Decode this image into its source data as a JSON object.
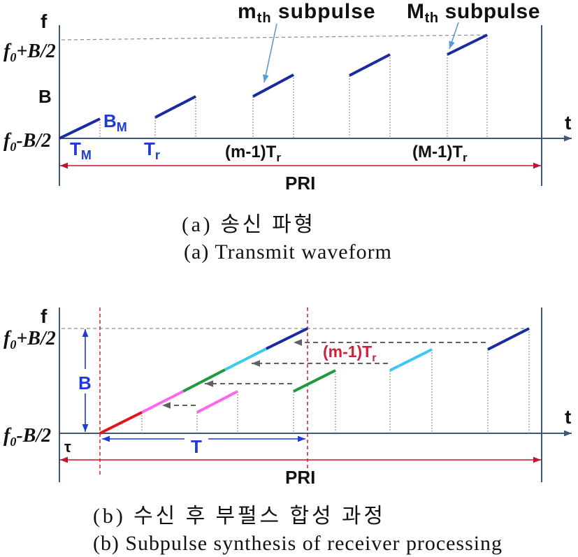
{
  "figure_a": {
    "axis_f": "f",
    "axis_t": "t",
    "f_high": {
      "base": "f",
      "sub": "0",
      "rest": "+B/2"
    },
    "bandwidth": "B",
    "f_low": {
      "base": "f",
      "sub": "0",
      "rest": "-B/2"
    },
    "m_th_callout": {
      "base": "m",
      "sub": "th",
      "rest": " subpulse"
    },
    "M_th_callout": {
      "base": "M",
      "sub": "th",
      "rest": " subpulse"
    },
    "subpulse_bandwidth": {
      "base": "B",
      "sub": "M"
    },
    "subpulse_width": {
      "base": "T",
      "sub": "M"
    },
    "repetition": {
      "base": "T",
      "sub": "r"
    },
    "m_offset": {
      "base": "(m-1)T",
      "sub": "r"
    },
    "M_offset": {
      "base": "(M-1)T",
      "sub": "r"
    },
    "pri": "PRI",
    "caption_ko": "(a) 송신 파형",
    "caption_en": "(a) Transmit waveform"
  },
  "figure_b": {
    "axis_f": "f",
    "axis_t": "t",
    "f_high": {
      "base": "f",
      "sub": "0",
      "rest": "+B/2"
    },
    "f_low": {
      "base": "f",
      "sub": "0",
      "rest": "-B/2"
    },
    "bandwidth": "B",
    "tau": "τ",
    "synth_duration": "T",
    "shift": {
      "base": "(m-1)T",
      "sub": "r"
    },
    "pri": "PRI",
    "caption_ko": "(b) 수신 후 부펄스 합성 과정",
    "caption_en": "(b) Subpulse synthesis of receiver processing"
  },
  "colors": {
    "axis": "#3d5877",
    "subpulse_blue": "#1a2aa0",
    "label_blue": "#1f3ad6",
    "pri_red": "#c8102e",
    "callout_arrow": "#5b9bd5",
    "segment_red": "#e8101a",
    "segment_magenta": "#ff66ee",
    "segment_green": "#1e9a3c",
    "segment_light_blue": "#3cc8f0",
    "segment_dark_blue": "#1a2aa0"
  }
}
